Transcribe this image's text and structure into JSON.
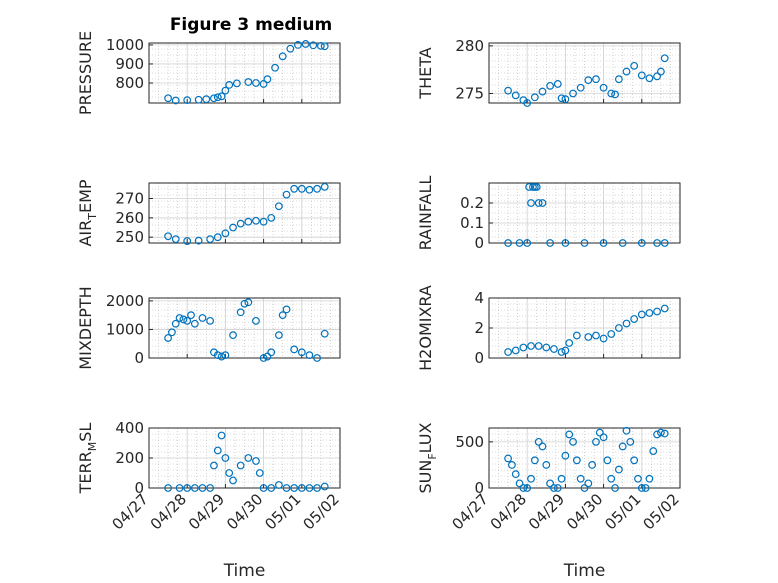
{
  "figure": {
    "title": "Figure 3 medium"
  },
  "colors": {
    "marker": "#0072BD",
    "axis": "#262626",
    "grid": "#b8b8b8"
  },
  "chart_data": [
    {
      "id": "pressure",
      "type": "scatter",
      "title": "Figure 3 medium",
      "ylabel": {
        "main": "PRESSURE"
      },
      "yticks": [
        800,
        900,
        1000
      ],
      "ylim": [
        695,
        1010
      ],
      "xlim": [
        "04/27",
        "05/02"
      ],
      "xlabel": "",
      "xtick_labels": [],
      "series": [
        {
          "x_day": [
            0.5,
            0.7,
            1.0,
            1.3,
            1.5,
            1.7,
            1.8,
            1.9,
            2.0,
            2.1,
            2.3,
            2.6,
            2.8,
            3.0,
            3.1,
            3.3,
            3.5,
            3.7,
            3.9,
            4.1,
            4.3,
            4.5,
            4.6
          ],
          "y": [
            720,
            708,
            710,
            712,
            715,
            720,
            725,
            730,
            760,
            790,
            798,
            805,
            800,
            795,
            820,
            880,
            940,
            980,
            1000,
            1005,
            998,
            995,
            993
          ]
        }
      ]
    },
    {
      "id": "theta",
      "type": "scatter",
      "ylabel": {
        "main": "THETA"
      },
      "yticks": [
        275,
        280
      ],
      "ylim": [
        274,
        280.3
      ],
      "xlim": [
        "04/27",
        "05/02"
      ],
      "xlabel": "",
      "xtick_labels": [],
      "series": [
        {
          "x_day": [
            0.5,
            0.7,
            0.9,
            1.0,
            1.2,
            1.4,
            1.6,
            1.8,
            1.9,
            2.0,
            2.2,
            2.4,
            2.6,
            2.8,
            3.0,
            3.2,
            3.3,
            3.4,
            3.6,
            3.8,
            4.0,
            4.2,
            4.4,
            4.5,
            4.6
          ],
          "y": [
            275.3,
            274.8,
            274.3,
            274.0,
            274.6,
            275.2,
            275.8,
            276.0,
            274.5,
            274.4,
            275.0,
            275.6,
            276.4,
            276.5,
            275.6,
            275.0,
            274.9,
            276.5,
            277.3,
            277.9,
            276.9,
            276.6,
            276.8,
            277.3,
            278.7
          ]
        }
      ]
    },
    {
      "id": "air_temp",
      "type": "scatter",
      "ylabel": {
        "main": "AIR",
        "sub": "T",
        "rest": "EMP"
      },
      "yticks": [
        250,
        260,
        270
      ],
      "ylim": [
        247,
        278
      ],
      "xlim": [
        "04/27",
        "05/02"
      ],
      "xlabel": "",
      "xtick_labels": [],
      "series": [
        {
          "x_day": [
            0.5,
            0.7,
            1.0,
            1.3,
            1.6,
            1.8,
            2.0,
            2.2,
            2.4,
            2.6,
            2.8,
            3.0,
            3.2,
            3.4,
            3.6,
            3.8,
            4.0,
            4.2,
            4.4,
            4.6
          ],
          "y": [
            250.5,
            249.0,
            248.0,
            248.2,
            249.0,
            250.0,
            252.0,
            255.0,
            257.0,
            258.0,
            258.5,
            258.0,
            260.0,
            266.0,
            272.0,
            275.0,
            275.0,
            274.5,
            275.0,
            276.0
          ]
        }
      ]
    },
    {
      "id": "rainfall",
      "type": "scatter",
      "ylabel": {
        "main": "RAINFALL"
      },
      "yticks": [
        0,
        0.1,
        0.2
      ],
      "ylim": [
        0,
        0.3
      ],
      "xlim": [
        "04/27",
        "05/02"
      ],
      "xlabel": "",
      "xtick_labels": [],
      "series": [
        {
          "x_day": [
            0.5,
            0.8,
            1.0,
            1.05,
            1.1,
            1.15,
            1.2,
            1.25,
            1.3,
            1.4,
            1.6,
            2.0,
            2.5,
            3.0,
            3.5,
            4.0,
            4.4,
            4.6
          ],
          "y": [
            0,
            0,
            0,
            0.28,
            0.2,
            0.28,
            0.28,
            0.28,
            0.2,
            0.2,
            0,
            0,
            0,
            0,
            0,
            0,
            0,
            0
          ]
        }
      ]
    },
    {
      "id": "mixdepth",
      "type": "scatter",
      "ylabel": {
        "main": "MIXDEPTH"
      },
      "yticks": [
        0,
        1000,
        2000
      ],
      "ylim": [
        0,
        2100
      ],
      "xlim": [
        "04/27",
        "05/02"
      ],
      "xlabel": "",
      "xtick_labels": [],
      "series": [
        {
          "x_day": [
            0.5,
            0.6,
            0.7,
            0.8,
            0.9,
            1.0,
            1.1,
            1.2,
            1.4,
            1.6,
            1.7,
            1.8,
            1.9,
            2.0,
            2.2,
            2.4,
            2.5,
            2.6,
            2.8,
            3.0,
            3.1,
            3.2,
            3.4,
            3.5,
            3.6,
            3.8,
            4.0,
            4.2,
            4.4,
            4.6
          ],
          "y": [
            700,
            900,
            1200,
            1400,
            1350,
            1300,
            1500,
            1200,
            1400,
            1300,
            200,
            100,
            50,
            100,
            800,
            1600,
            1900,
            1950,
            1300,
            0,
            50,
            200,
            800,
            1500,
            1700,
            300,
            200,
            100,
            0,
            850
          ]
        }
      ]
    },
    {
      "id": "h2omixra",
      "type": "scatter",
      "ylabel": {
        "main": "H2OMIXRA"
      },
      "yticks": [
        0,
        2,
        4
      ],
      "ylim": [
        0,
        4
      ],
      "xlim": [
        "04/27",
        "05/02"
      ],
      "xlabel": "",
      "xtick_labels": [],
      "series": [
        {
          "x_day": [
            0.5,
            0.7,
            0.9,
            1.1,
            1.3,
            1.5,
            1.7,
            1.9,
            2.0,
            2.1,
            2.3,
            2.6,
            2.8,
            3.0,
            3.2,
            3.4,
            3.6,
            3.8,
            4.0,
            4.2,
            4.4,
            4.6
          ],
          "y": [
            0.4,
            0.5,
            0.7,
            0.8,
            0.8,
            0.7,
            0.6,
            0.4,
            0.5,
            1.0,
            1.5,
            1.4,
            1.5,
            1.3,
            1.6,
            2.0,
            2.3,
            2.6,
            2.9,
            3.0,
            3.1,
            3.3
          ]
        }
      ]
    },
    {
      "id": "terr_msl",
      "type": "scatter",
      "ylabel": {
        "main": "TERR",
        "sub": "M",
        "rest": "SL"
      },
      "yticks": [
        0,
        200,
        400
      ],
      "ylim": [
        0,
        400
      ],
      "xlim": [
        "04/27",
        "05/02"
      ],
      "xlabel": "Time",
      "xtick_labels": [
        "04/27",
        "04/28",
        "04/29",
        "04/30",
        "05/01",
        "05/02"
      ],
      "series": [
        {
          "x_day": [
            0.5,
            0.8,
            1.0,
            1.2,
            1.4,
            1.6,
            1.7,
            1.8,
            1.9,
            2.0,
            2.1,
            2.2,
            2.4,
            2.6,
            2.8,
            2.9,
            3.0,
            3.2,
            3.4,
            3.6,
            3.8,
            4.0,
            4.2,
            4.4,
            4.6
          ],
          "y": [
            0,
            0,
            0,
            0,
            0,
            0,
            150,
            250,
            350,
            200,
            100,
            50,
            150,
            200,
            180,
            100,
            0,
            0,
            20,
            0,
            0,
            0,
            0,
            0,
            10
          ]
        }
      ]
    },
    {
      "id": "sun_flux",
      "type": "scatter",
      "ylabel": {
        "main": "SUN",
        "sub": "F",
        "rest": "LUX"
      },
      "yticks": [
        0,
        500
      ],
      "ylim": [
        0,
        650
      ],
      "xlim": [
        "04/27",
        "05/02"
      ],
      "xlabel": "Time",
      "xtick_labels": [
        "04/27",
        "04/28",
        "04/29",
        "04/30",
        "05/01",
        "05/02"
      ],
      "series": [
        {
          "x_day": [
            0.5,
            0.6,
            0.7,
            0.8,
            0.9,
            1.0,
            1.1,
            1.2,
            1.3,
            1.4,
            1.5,
            1.6,
            1.7,
            1.8,
            1.9,
            2.0,
            2.1,
            2.2,
            2.3,
            2.4,
            2.5,
            2.6,
            2.7,
            2.8,
            2.9,
            3.0,
            3.1,
            3.2,
            3.3,
            3.4,
            3.5,
            3.6,
            3.7,
            3.8,
            3.9,
            4.0,
            4.1,
            4.2,
            4.3,
            4.4,
            4.5,
            4.6
          ],
          "y": [
            320,
            250,
            150,
            50,
            0,
            0,
            100,
            300,
            500,
            450,
            250,
            50,
            0,
            0,
            100,
            350,
            580,
            500,
            300,
            100,
            0,
            50,
            250,
            500,
            600,
            550,
            300,
            100,
            0,
            200,
            450,
            620,
            500,
            300,
            100,
            0,
            0,
            100,
            400,
            580,
            600,
            590
          ]
        }
      ]
    }
  ]
}
